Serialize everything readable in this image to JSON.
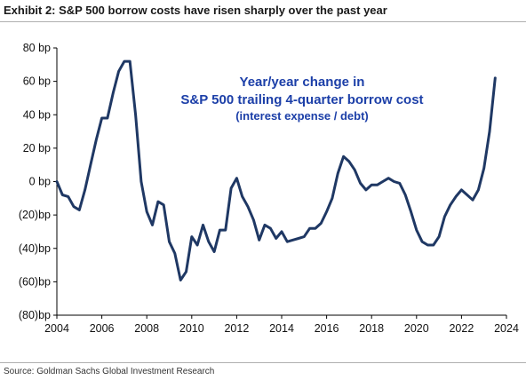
{
  "header": {
    "title": "Exhibit 2: S&P 500 borrow costs have risen sharply over the past year"
  },
  "footer": {
    "source": "Source: Goldman Sachs Global Investment Research"
  },
  "colors": {
    "line": "#1f3864",
    "annotation": "#1c3fa8",
    "axis": "#000000"
  },
  "chart_data": {
    "type": "line",
    "title": "",
    "xlabel": "",
    "ylabel": "",
    "xlim": [
      2004,
      2024
    ],
    "ylim": [
      -80,
      80
    ],
    "grid": false,
    "legend": "none",
    "x_ticks": [
      2004,
      2006,
      2008,
      2010,
      2012,
      2014,
      2016,
      2018,
      2020,
      2022,
      2024
    ],
    "x_tick_labels": [
      "2004",
      "2006",
      "2008",
      "2010",
      "2012",
      "2014",
      "2016",
      "2018",
      "2020",
      "2022",
      "2024"
    ],
    "y_ticks": [
      80,
      60,
      40,
      20,
      0,
      -20,
      -40,
      -60,
      -80
    ],
    "y_tick_labels": [
      "80 bp",
      "60 bp",
      "40 bp",
      "20 bp",
      "0 bp",
      "(20)bp",
      "(40)bp",
      "(60)bp",
      "(80)bp"
    ],
    "annotation": {
      "lines": [
        "Year/year change in",
        "S&P 500 trailing 4-quarter borrow cost",
        "(interest expense / debt)"
      ]
    },
    "series": [
      {
        "x": [
          2004.0,
          2004.25,
          2004.5,
          2004.75,
          2005.0,
          2005.25,
          2005.5,
          2005.75,
          2006.0,
          2006.25,
          2006.5,
          2006.75,
          2007.0,
          2007.25,
          2007.5,
          2007.75,
          2008.0,
          2008.25,
          2008.5,
          2008.75,
          2009.0,
          2009.25,
          2009.5,
          2009.75,
          2010.0,
          2010.25,
          2010.5,
          2010.75,
          2011.0,
          2011.25,
          2011.5,
          2011.75,
          2012.0,
          2012.25,
          2012.5,
          2012.75,
          2013.0,
          2013.25,
          2013.5,
          2013.75,
          2014.0,
          2014.25,
          2014.5,
          2014.75,
          2015.0,
          2015.25,
          2015.5,
          2015.75,
          2016.0,
          2016.25,
          2016.5,
          2016.75,
          2017.0,
          2017.25,
          2017.5,
          2017.75,
          2018.0,
          2018.25,
          2018.5,
          2018.75,
          2019.0,
          2019.25,
          2019.5,
          2019.75,
          2020.0,
          2020.25,
          2020.5,
          2020.75,
          2021.0,
          2021.25,
          2021.5,
          2021.75,
          2022.0,
          2022.25,
          2022.5,
          2022.75,
          2023.0,
          2023.25,
          2023.5
        ],
        "y": [
          0,
          -8,
          -9,
          -15,
          -17,
          -5,
          10,
          25,
          38,
          38,
          53,
          66,
          72,
          72,
          40,
          0,
          -18,
          -26,
          -12,
          -14,
          -36,
          -43,
          -59,
          -54,
          -33,
          -38,
          -26,
          -36,
          -42,
          -29,
          -29,
          -4,
          2,
          -9,
          -15,
          -23,
          -35,
          -26,
          -28,
          -34,
          -30,
          -36,
          -35,
          -34,
          -33,
          -28,
          -28,
          -25,
          -18,
          -10,
          5,
          15,
          12,
          7,
          -1,
          -5,
          -2,
          -2,
          0,
          2,
          0,
          -1,
          -8,
          -18,
          -29,
          -36,
          -38,
          -38,
          -33,
          -21,
          -14,
          -9,
          -5,
          -8,
          -11,
          -5,
          8,
          30,
          62
        ]
      }
    ]
  }
}
